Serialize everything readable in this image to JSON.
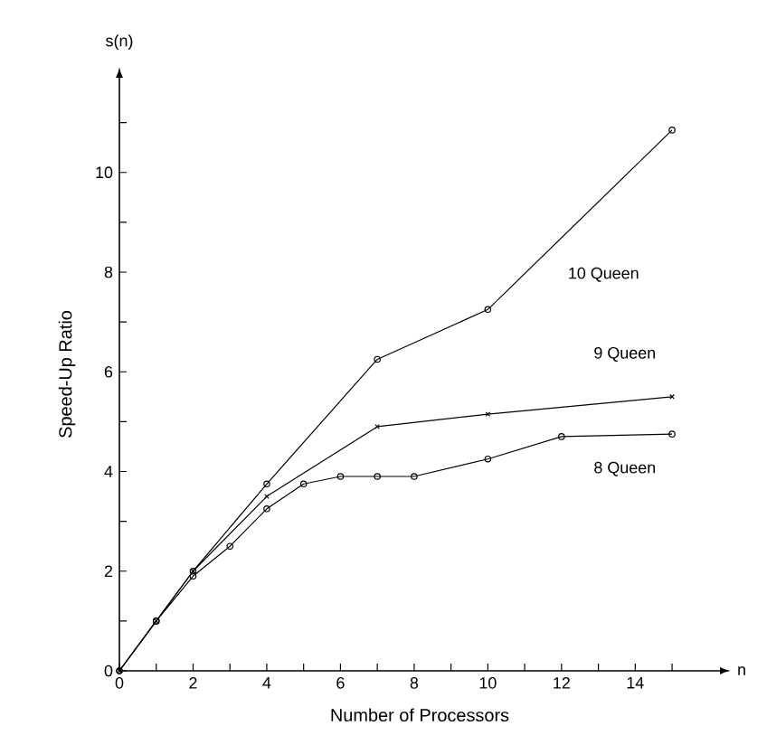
{
  "chart_data": {
    "type": "line",
    "xlabel": "Number of Processors",
    "ylabel": "Speed-Up Ratio",
    "annotations": [
      "s(n)",
      "n"
    ],
    "xlim": [
      0,
      16.3
    ],
    "ylim": [
      0,
      11.9
    ],
    "xticks": [
      0,
      {
        "value": 1,
        "label": null
      },
      2,
      {
        "value": 3,
        "label": null
      },
      4,
      {
        "value": 5,
        "label": null
      },
      6,
      {
        "value": 7,
        "label": null
      },
      8,
      {
        "value": 9,
        "label": null
      },
      10,
      {
        "value": 11,
        "label": null
      },
      12,
      {
        "value": 13,
        "label": null
      },
      14,
      {
        "value": 15,
        "label": null
      }
    ],
    "yticks": [
      0,
      {
        "value": 1,
        "label": null
      },
      2,
      {
        "value": 3,
        "label": null
      },
      4,
      {
        "value": 5,
        "label": null
      },
      6,
      {
        "value": 7,
        "label": null
      },
      8,
      {
        "value": 9,
        "label": null
      },
      10,
      {
        "value": 11,
        "label": null
      }
    ],
    "grid": false,
    "legend": false,
    "series": [
      {
        "name": "10 Queen",
        "color": "#000000",
        "marker": "circle",
        "x": [
          0,
          1,
          2,
          4,
          7,
          10,
          15
        ],
        "values": [
          0,
          1,
          2,
          3.75,
          6.25,
          7.25,
          10.85
        ]
      },
      {
        "name": "9 Queen",
        "color": "#000000",
        "marker": "cross",
        "x": [
          0,
          1,
          2,
          4,
          7,
          10,
          15
        ],
        "values": [
          0,
          1,
          2,
          3.5,
          4.9,
          5.15,
          5.5
        ]
      },
      {
        "name": "8 Queen",
        "color": "#000000",
        "marker": "circle",
        "x": [
          0,
          1,
          2,
          3,
          4,
          5,
          6,
          7,
          8,
          10,
          12,
          15
        ],
        "values": [
          0,
          1,
          1.9,
          2.5,
          3.25,
          3.75,
          3.9,
          3.9,
          3.9,
          4.25,
          4.7,
          4.75
        ]
      }
    ]
  }
}
